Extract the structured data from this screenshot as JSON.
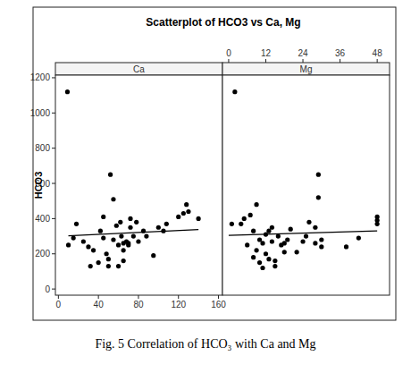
{
  "header": {
    "title": "Scatterplot of HCO3 vs Ca, Mg"
  },
  "caption": "Fig. 5 Correlation of HCO₃ with Ca and Mg",
  "chart_data": [
    {
      "type": "scatter",
      "title": "Ca",
      "ylabel": "HCO3",
      "color": "#000000",
      "marker": "circle",
      "xlim": [
        -3,
        164
      ],
      "xticks": [
        0,
        40,
        80,
        120,
        160
      ],
      "ylim": [
        -35,
        1215
      ],
      "yticks": [
        0,
        200,
        400,
        600,
        800,
        1000,
        1200
      ],
      "series": [
        {
          "x": [
            9,
            10,
            18,
            15,
            25,
            30,
            35,
            32,
            40,
            45,
            45,
            48,
            50,
            50,
            52,
            55,
            55,
            58,
            60,
            62,
            63,
            65,
            65,
            68,
            70,
            70,
            72,
            72,
            75,
            78,
            80,
            65,
            85,
            88,
            95,
            100,
            105,
            108,
            120,
            125,
            128,
            130,
            140,
            60,
            42
          ],
          "values": [
            1120,
            250,
            370,
            290,
            270,
            240,
            220,
            130,
            150,
            410,
            290,
            200,
            170,
            130,
            650,
            510,
            280,
            360,
            250,
            380,
            300,
            260,
            220,
            270,
            260,
            250,
            400,
            350,
            300,
            380,
            270,
            160,
            330,
            300,
            190,
            350,
            330,
            370,
            410,
            430,
            480,
            440,
            400,
            130,
            330
          ]
        },
        {
          "type": "line",
          "x": [
            10,
            140
          ],
          "values": [
            302,
            338
          ]
        }
      ]
    },
    {
      "type": "scatter",
      "title": "Mg",
      "color": "#000000",
      "marker": "circle",
      "tick_labels": "x",
      "xlim": [
        -2,
        52
      ],
      "xticks": [
        0,
        12,
        24,
        36,
        48
      ],
      "ylim": [
        -35,
        1215
      ],
      "series": [
        {
          "x": [
            1,
            2,
            4,
            5,
            6,
            7,
            8,
            8,
            9,
            9,
            10,
            10,
            11,
            11,
            12,
            12,
            13,
            13,
            14,
            14,
            15,
            15,
            16,
            17,
            18,
            18,
            19,
            20,
            22,
            24,
            25,
            26,
            28,
            28,
            29,
            29,
            30,
            30,
            38,
            42,
            48,
            48,
            48
          ],
          "values": [
            370,
            1120,
            370,
            400,
            250,
            420,
            330,
            180,
            480,
            220,
            150,
            280,
            120,
            260,
            310,
            200,
            330,
            170,
            350,
            270,
            160,
            130,
            300,
            250,
            260,
            210,
            280,
            340,
            210,
            270,
            300,
            380,
            350,
            260,
            520,
            650,
            240,
            280,
            240,
            290,
            410,
            370,
            390
          ]
        },
        {
          "type": "line",
          "x": [
            0,
            48
          ],
          "values": [
            305,
            330
          ]
        }
      ]
    }
  ]
}
